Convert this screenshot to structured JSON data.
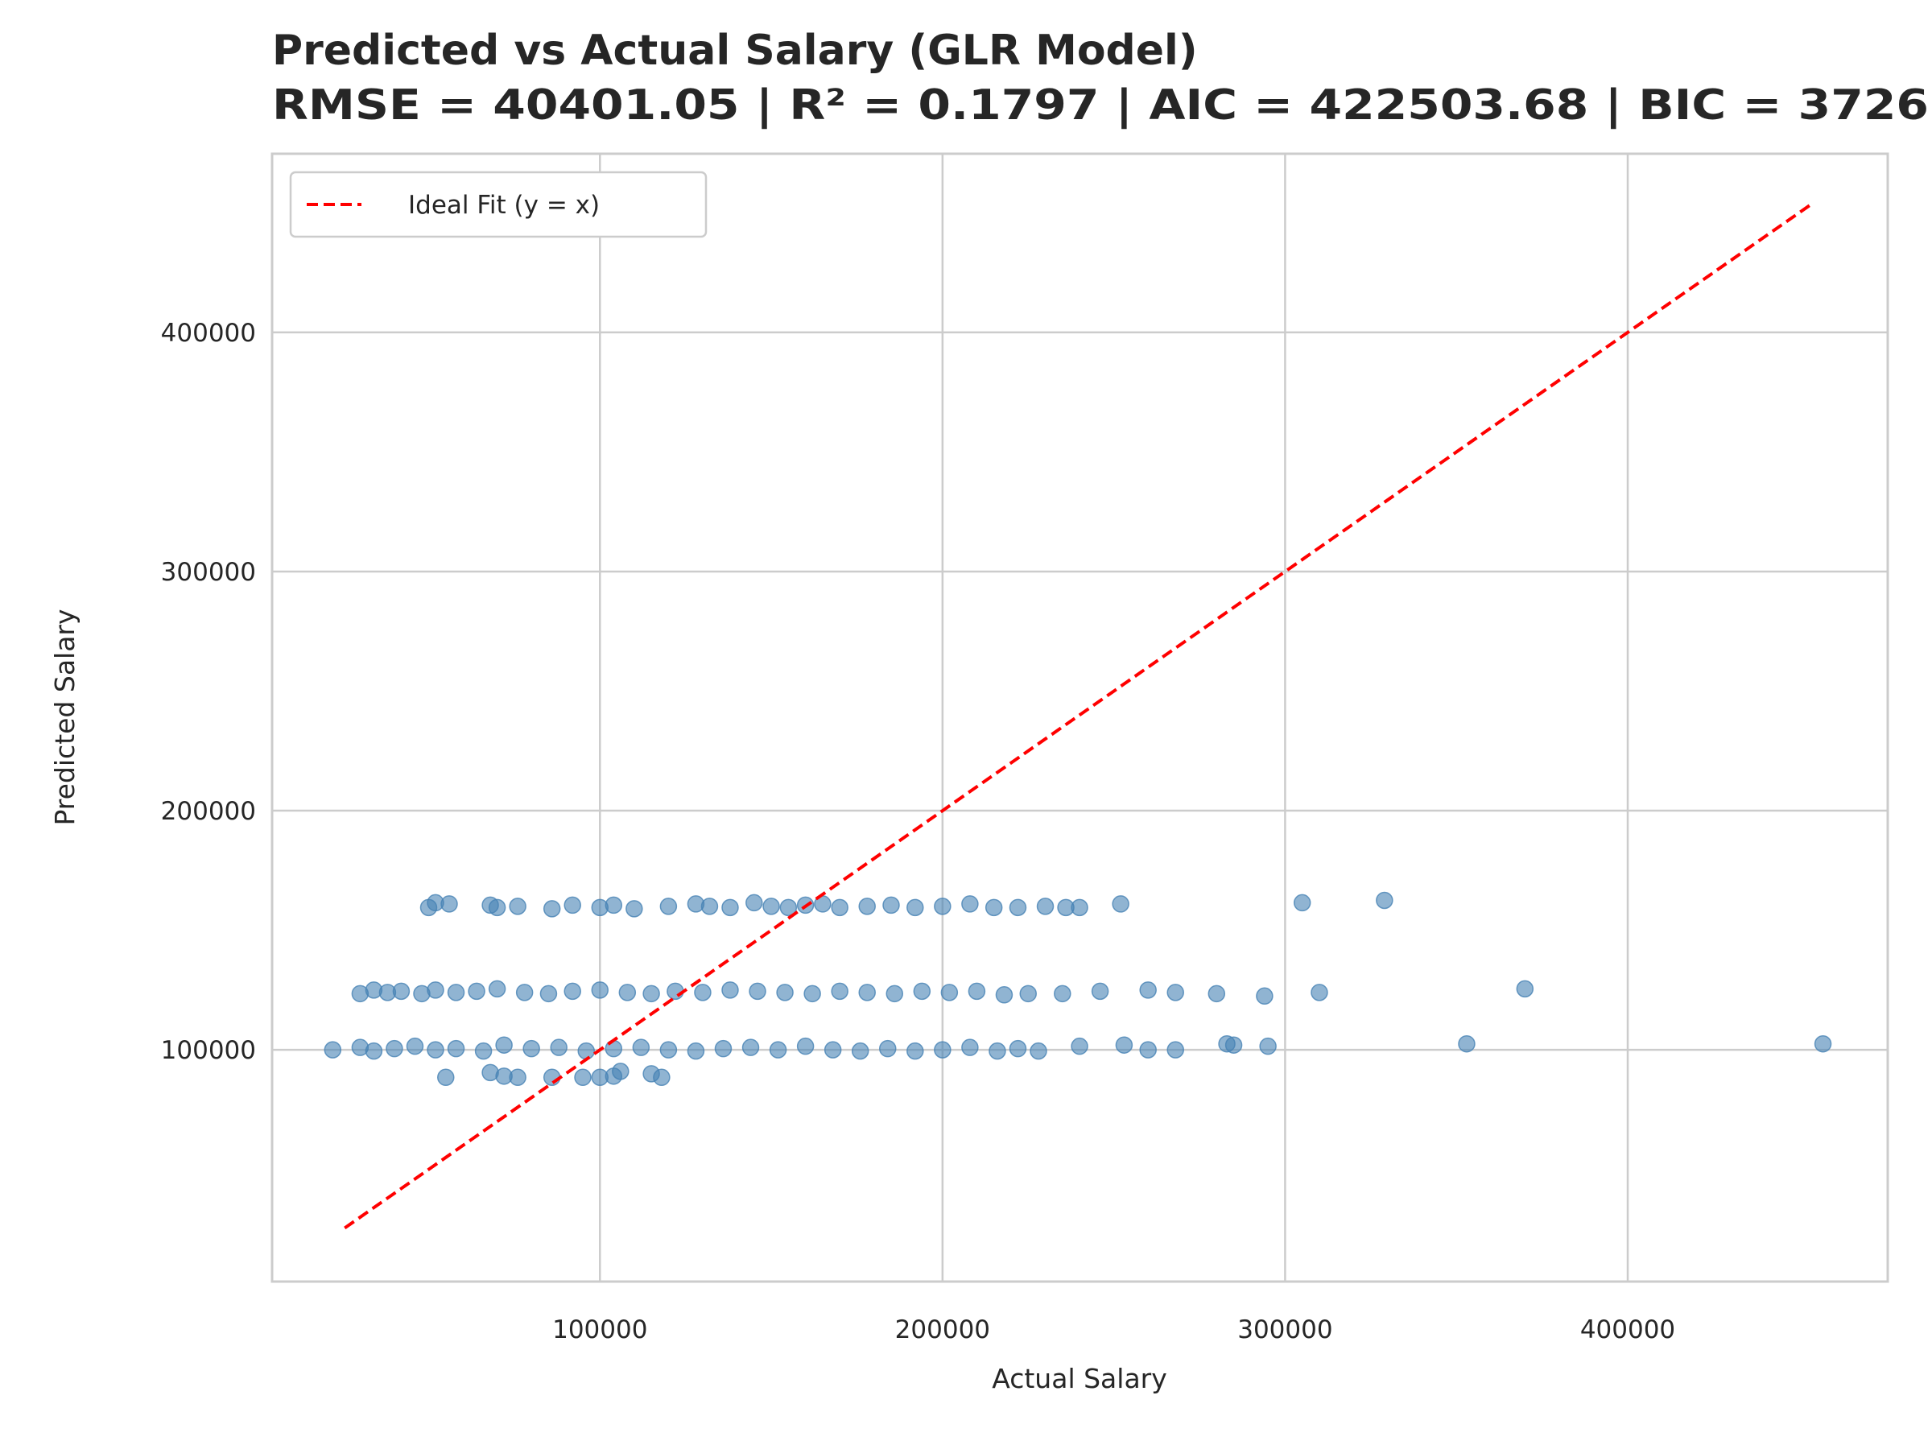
{
  "chart_data": {
    "type": "scatter",
    "title": "Predicted vs Actual Salary (GLR Model)",
    "subtitle": "RMSE = 40401.05 | R² = 0.1797 | AIC = 422503.68 | BIC = 3726",
    "x_label": "Actual Salary",
    "y_label": "Predicted Salary",
    "xlim": [
      4300,
      475900
    ],
    "ylim": [
      3100,
      474700
    ],
    "xticks": [
      100000,
      200000,
      300000,
      400000
    ],
    "yticks": [
      100000,
      200000,
      300000,
      400000
    ],
    "grid": true,
    "legend": "upper left",
    "color": "#4682b4",
    "x": [
      50000,
      52000,
      56000,
      68000,
      70000,
      76000,
      86000,
      92000,
      100000,
      104000,
      110000,
      120000,
      128000,
      132000,
      138000,
      145000,
      150000,
      155000,
      160000,
      165000,
      170000,
      178000,
      185000,
      192000,
      200000,
      208000,
      215000,
      222000,
      230000,
      236000,
      240000,
      252000,
      305000,
      329000,
      30000,
      34000,
      38000,
      42000,
      48000,
      52000,
      58000,
      64000,
      70000,
      78000,
      85000,
      92000,
      100000,
      108000,
      115000,
      122000,
      130000,
      138000,
      146000,
      154000,
      162000,
      170000,
      178000,
      186000,
      194000,
      202000,
      210000,
      218000,
      225000,
      235000,
      246000,
      260000,
      268000,
      280000,
      294000,
      310000,
      370000,
      22000,
      30000,
      34000,
      40000,
      46000,
      52000,
      58000,
      66000,
      72000,
      80000,
      88000,
      96000,
      104000,
      112000,
      120000,
      128000,
      136000,
      144000,
      152000,
      160000,
      168000,
      176000,
      184000,
      192000,
      200000,
      208000,
      216000,
      222000,
      228000,
      240000,
      253000,
      260000,
      268000,
      283000,
      285000,
      295000,
      353000,
      457000,
      55000,
      68000,
      72000,
      76000,
      86000,
      95000,
      100000,
      104000,
      106000,
      115000,
      118000
    ],
    "values": [
      159500,
      161500,
      161000,
      160500,
      159500,
      160000,
      159000,
      160500,
      159500,
      160500,
      159000,
      160000,
      161000,
      160000,
      159500,
      161500,
      160000,
      159500,
      160500,
      161000,
      159500,
      160000,
      160500,
      159500,
      160000,
      161000,
      159500,
      159500,
      160000,
      159500,
      159500,
      161000,
      161500,
      162500,
      123500,
      125000,
      124000,
      124500,
      123500,
      125000,
      124000,
      124500,
      125500,
      124000,
      123500,
      124500,
      125000,
      124000,
      123500,
      124500,
      124000,
      125000,
      124500,
      124000,
      123500,
      124500,
      124000,
      123500,
      124500,
      124000,
      124500,
      123000,
      123500,
      123500,
      124500,
      125000,
      124000,
      123500,
      122500,
      124000,
      125500,
      100000,
      101000,
      99500,
      100500,
      101500,
      100000,
      100500,
      99500,
      102000,
      100500,
      101000,
      99500,
      100500,
      101000,
      100000,
      99500,
      100500,
      101000,
      100000,
      101500,
      100000,
      99500,
      100500,
      99500,
      100000,
      101000,
      99500,
      100500,
      99500,
      101500,
      102000,
      100000,
      100000,
      102500,
      102000,
      101500,
      102500,
      102500,
      88500,
      90500,
      89000,
      88500,
      88500,
      88500,
      88500,
      89000,
      91000,
      90000,
      88500
    ],
    "line": {
      "name": "Ideal Fit (y = x)",
      "color": "#ff0000",
      "x": [
        25500,
        454300
      ],
      "values": [
        25500,
        454300
      ]
    }
  }
}
